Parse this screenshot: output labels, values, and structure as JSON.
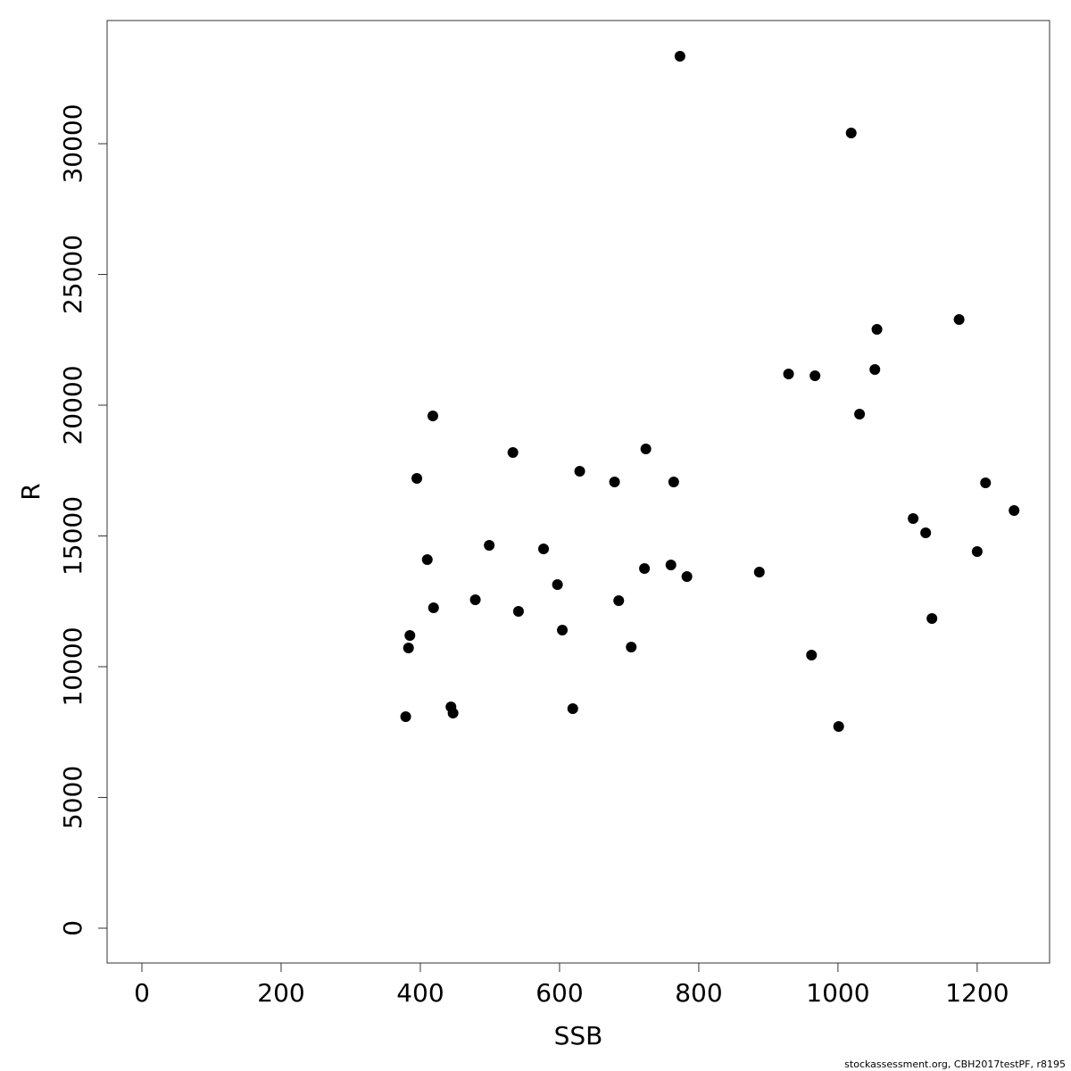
{
  "chart_data": {
    "type": "scatter",
    "x_label": "SSB",
    "y_label": "R",
    "footer": "stockassessment.org, CBH2017testPF, r8195",
    "color": "#000000",
    "xlim": [
      -50,
      1304
    ],
    "xticks": [
      0,
      200,
      400,
      600,
      800,
      1000,
      1200
    ],
    "ylim": [
      -1331,
      34710
    ],
    "yticks": [
      0,
      5000,
      10000,
      15000,
      20000,
      25000,
      30000
    ],
    "x": [
      773,
      1019,
      1174,
      1056,
      1053,
      929,
      967,
      1031,
      418,
      724,
      533,
      629,
      395,
      679,
      764,
      1212,
      1253,
      1108,
      499,
      577,
      1126,
      1200,
      410,
      760,
      722,
      783,
      887,
      597,
      479,
      685,
      419,
      541,
      1135,
      604,
      385,
      703,
      383,
      962,
      444,
      447,
      619,
      379,
      1001
    ],
    "y": [
      33345,
      30410,
      23276,
      22901,
      21365,
      21195,
      21126,
      19659,
      19590,
      18328,
      18191,
      17474,
      17201,
      17065,
      17065,
      17031,
      15973,
      15666,
      14642,
      14505,
      15119,
      14403,
      14096,
      13891,
      13754,
      13447,
      13618,
      13140,
      12560,
      12526,
      12253,
      12116,
      11843,
      11399,
      11195,
      10751,
      10717,
      10444,
      8464,
      8225,
      8396,
      8089,
      7713
    ]
  }
}
